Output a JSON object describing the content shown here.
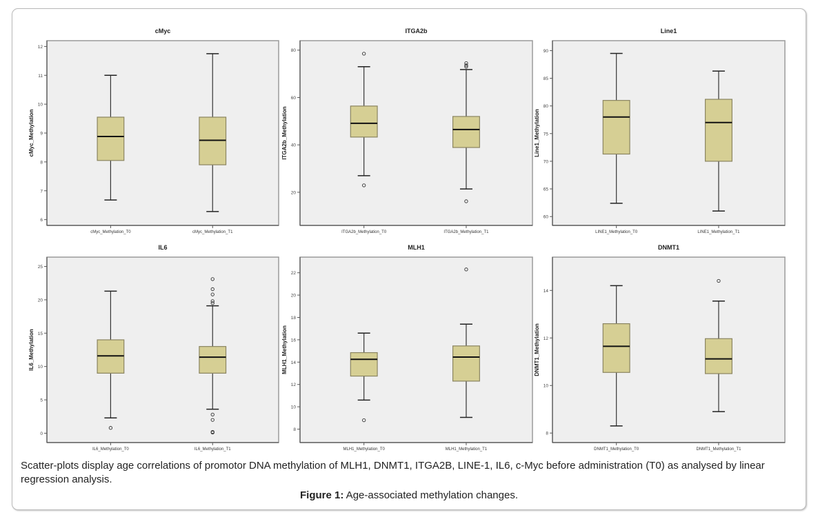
{
  "chart_data": [
    {
      "type": "boxplot",
      "title": "cMyc",
      "ylabel": "cMyc_Methylation",
      "xlabel": "",
      "ylim": [
        5.8,
        12.2
      ],
      "yticks": [
        6,
        7,
        8,
        9,
        10,
        11,
        12
      ],
      "grid": false,
      "categories": [
        "cMyc_Methylation_T0",
        "cMyc_Methylation_T1"
      ],
      "boxes": [
        {
          "whisker_low": 6.68,
          "q1": 8.05,
          "median": 8.88,
          "q3": 9.55,
          "whisker_high": 11.0,
          "outliers": []
        },
        {
          "whisker_low": 6.28,
          "q1": 7.9,
          "median": 8.75,
          "q3": 9.55,
          "whisker_high": 11.75,
          "outliers": []
        }
      ]
    },
    {
      "type": "boxplot",
      "title": "ITGA2b",
      "ylabel": "ITGA2b_Methylation",
      "xlabel": "",
      "ylim": [
        6,
        84
      ],
      "yticks": [
        20,
        40,
        60,
        80
      ],
      "grid": false,
      "categories": [
        "ITGA2b_Methylation_T0",
        "ITGA2b_Methylation_T1"
      ],
      "boxes": [
        {
          "whisker_low": 27,
          "q1": 43.3,
          "median": 49.1,
          "q3": 56.4,
          "whisker_high": 73,
          "outliers": [
            78.5,
            22.9
          ]
        },
        {
          "whisker_low": 21.4,
          "q1": 38.9,
          "median": 46.5,
          "q3": 52,
          "whisker_high": 71.8,
          "outliers": [
            74.5,
            73.6,
            73,
            16.2
          ]
        }
      ]
    },
    {
      "type": "boxplot",
      "title": "Line1",
      "ylabel": "Line1_Methylation",
      "xlabel": "",
      "ylim": [
        58.4,
        91.8
      ],
      "yticks": [
        60,
        65,
        70,
        75,
        80,
        85,
        90
      ],
      "grid": false,
      "categories": [
        "LINE1_Methylation_T0",
        "LINE1_Methylation_T1"
      ],
      "boxes": [
        {
          "whisker_low": 62.4,
          "q1": 71.3,
          "median": 78,
          "q3": 81,
          "whisker_high": 89.5,
          "outliers": []
        },
        {
          "whisker_low": 61,
          "q1": 70,
          "median": 77,
          "q3": 81.2,
          "whisker_high": 86.3,
          "outliers": []
        }
      ]
    },
    {
      "type": "boxplot",
      "title": "IL6",
      "ylabel": "IL6_Methylation",
      "xlabel": "",
      "ylim": [
        -1.4,
        26.4
      ],
      "yticks": [
        0,
        5,
        10,
        15,
        20,
        25
      ],
      "grid": false,
      "categories": [
        "IL6_Methylation_T0",
        "IL6_Methylation_T1"
      ],
      "boxes": [
        {
          "whisker_low": 2.3,
          "q1": 9,
          "median": 11.6,
          "q3": 14,
          "whisker_high": 21.3,
          "outliers": [
            0.8
          ]
        },
        {
          "whisker_low": 3.6,
          "q1": 9,
          "median": 11.4,
          "q3": 13,
          "whisker_high": 19.1,
          "outliers": [
            23.1,
            21.6,
            20.8,
            19.8,
            19.5,
            2.8,
            2.0,
            0.2,
            0.1
          ]
        }
      ]
    },
    {
      "type": "boxplot",
      "title": "MLH1",
      "ylabel": "MLH1_Methylation",
      "xlabel": "",
      "ylim": [
        6.8,
        23.4
      ],
      "yticks": [
        8,
        10,
        12,
        14,
        16,
        18,
        20,
        22
      ],
      "grid": false,
      "categories": [
        "MLH1_Methylation_T0",
        "MLH1_Methylation_T1"
      ],
      "boxes": [
        {
          "whisker_low": 10.6,
          "q1": 12.75,
          "median": 14.25,
          "q3": 14.85,
          "whisker_high": 16.6,
          "outliers": [
            8.8
          ]
        },
        {
          "whisker_low": 9.05,
          "q1": 12.3,
          "median": 14.45,
          "q3": 15.45,
          "whisker_high": 17.4,
          "outliers": [
            22.3
          ]
        }
      ]
    },
    {
      "type": "boxplot",
      "title": "DNMT1",
      "ylabel": "DNMT1_Methylation",
      "xlabel": "",
      "ylim": [
        7.6,
        15.4
      ],
      "yticks": [
        8,
        10,
        12,
        14
      ],
      "grid": false,
      "categories": [
        "DNMT1_Methylation_T0",
        "DNMT1_Methylation_T1"
      ],
      "boxes": [
        {
          "whisker_low": 8.3,
          "q1": 10.55,
          "median": 11.65,
          "q3": 12.6,
          "whisker_high": 14.2,
          "outliers": []
        },
        {
          "whisker_low": 8.9,
          "q1": 10.5,
          "median": 11.12,
          "q3": 11.97,
          "whisker_high": 13.55,
          "outliers": [
            14.4
          ]
        }
      ]
    }
  ],
  "colors": {
    "box_fill": "#d6cf94",
    "box_stroke": "#8a8460",
    "plot_bg": "#efefef",
    "axis": "#555555"
  },
  "caption": {
    "text": "Scatter-plots display age correlations of promotor DNA methylation of MLH1, DNMT1, ITGA2B, LINE-1, IL6, c-Myc before administration (T0) as analysed by linear regression analysis.",
    "figure_label": "Figure 1:",
    "figure_title": " Age-associated methylation changes."
  }
}
